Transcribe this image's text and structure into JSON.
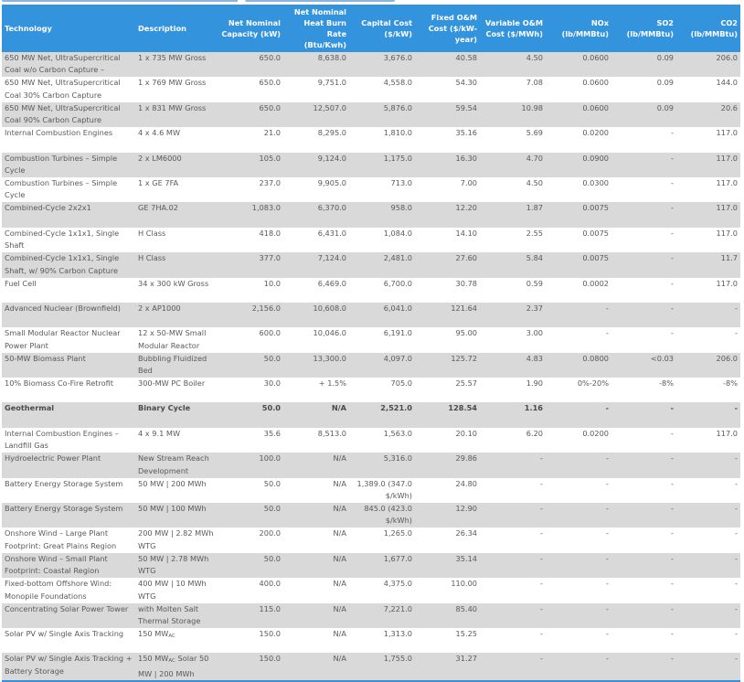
{
  "header": {
    "technology": "Technology",
    "description": "Description",
    "capacity": "Net Nominal Capacity (kW)",
    "heat_rate": "Net Nominal Heat Burn Rate (Btu/Kwh)",
    "capital_cost": "Capital Cost ($/kW)",
    "fixed_om": "Fixed O&M Cost ($/kW-year)",
    "variable_om": "Variable O&M Cost ($/MWh)",
    "nox": "NOx (lb/MMBtu)",
    "so2": "SO2 (lb/MMBtu)",
    "co2": "CO2 (lb/MMBtu)"
  },
  "colors": {
    "header_bg": "#3393dd",
    "stripe": "#d9d9d9",
    "text": "#5a5a5a"
  },
  "rows": [
    {
      "tech": "650 MW Net, UltraSupercritical Coal w/o Carbon Capture –",
      "desc": "1 x 735 MW Gross",
      "cap": "650.0",
      "heat": "8,638.0",
      "capital": "3,676.0",
      "fixed": "40.58",
      "var": "4.50",
      "nox": "0.0600",
      "so2": "0.09",
      "co2": "206.0"
    },
    {
      "tech": "650 MW Net, UltraSupercritical Coal 30% Carbon Capture",
      "desc": "1 x 769 MW Gross",
      "cap": "650.0",
      "heat": "9,751.0",
      "capital": "4,558.0",
      "fixed": "54.30",
      "var": "7.08",
      "nox": "0.0600",
      "so2": "0.09",
      "co2": "144.0"
    },
    {
      "tech": "650 MW Net, UltraSupercritical Coal 90% Carbon Capture",
      "desc": "1 x 831 MW Gross",
      "cap": "650.0",
      "heat": "12,507.0",
      "capital": "5,876.0",
      "fixed": "59.54",
      "var": "10.98",
      "nox": "0.0600",
      "so2": "0.09",
      "co2": "20.6"
    },
    {
      "tech": "Internal Combustion Engines",
      "desc": "4 x 4.6 MW",
      "cap": "21.0",
      "heat": "8,295.0",
      "capital": "1,810.0",
      "fixed": "35.16",
      "var": "5.69",
      "nox": "0.0200",
      "so2": "-",
      "co2": "117.0"
    },
    {
      "tech": "Combustion Turbines – Simple Cycle",
      "desc": "2 x LM6000",
      "cap": "105.0",
      "heat": "9,124.0",
      "capital": "1,175.0",
      "fixed": "16.30",
      "var": "4.70",
      "nox": "0.0900",
      "so2": "-",
      "co2": "117.0"
    },
    {
      "tech": "Combustion Turbines – Simple Cycle",
      "desc": "1 x GE 7FA",
      "cap": "237.0",
      "heat": "9,905.0",
      "capital": "713.0",
      "fixed": "7.00",
      "var": "4.50",
      "nox": "0.0300",
      "so2": "-",
      "co2": "117.0"
    },
    {
      "tech": "Combined-Cycle 2x2x1",
      "desc": "GE 7HA.02",
      "cap": "1,083.0",
      "heat": "6,370.0",
      "capital": "958.0",
      "fixed": "12.20",
      "var": "1.87",
      "nox": "0.0075",
      "so2": "-",
      "co2": "117.0"
    },
    {
      "tech": "Combined-Cycle 1x1x1, Single Shaft",
      "desc": "H Class",
      "cap": "418.0",
      "heat": "6,431.0",
      "capital": "1,084.0",
      "fixed": "14.10",
      "var": "2.55",
      "nox": "0.0075",
      "so2": "-",
      "co2": "117.0"
    },
    {
      "tech": "Combined-Cycle 1x1x1, Single Shaft, w/ 90% Carbon Capture",
      "desc": "H Class",
      "cap": "377.0",
      "heat": "7,124.0",
      "capital": "2,481.0",
      "fixed": "27.60",
      "var": "5.84",
      "nox": "0.0075",
      "so2": "-",
      "co2": "11.7"
    },
    {
      "tech": "Fuel Cell",
      "desc": "34 x 300 kW Gross",
      "cap": "10.0",
      "heat": "6,469.0",
      "capital": "6,700.0",
      "fixed": "30.78",
      "var": "0.59",
      "nox": "0.0002",
      "so2": "-",
      "co2": "117.0"
    },
    {
      "tech": "Advanced Nuclear (Brownfield)",
      "desc": "2 x AP1000",
      "cap": "2,156.0",
      "heat": "10,608.0",
      "capital": "6,041.0",
      "fixed": "121.64",
      "var": "2.37",
      "nox": "-",
      "so2": "-",
      "co2": "-"
    },
    {
      "tech": "Small Modular Reactor Nuclear Power Plant",
      "desc": "12 x 50-MW Small Modular Reactor",
      "cap": "600.0",
      "heat": "10,046.0",
      "capital": "6,191.0",
      "fixed": "95.00",
      "var": "3.00",
      "nox": "-",
      "so2": "-",
      "co2": "-"
    },
    {
      "tech": "50-MW Biomass Plant",
      "desc": "Bubbling Fluidized Bed",
      "cap": "50.0",
      "heat": "13,300.0",
      "capital": "4,097.0",
      "fixed": "125.72",
      "var": "4.83",
      "nox": "0.0800",
      "so2": "<0.03",
      "co2": "206.0"
    },
    {
      "tech": "10% Biomass Co-Fire Retrofit",
      "desc": "300-MW PC Boiler",
      "cap": "30.0",
      "heat": "+ 1.5%",
      "capital": "705.0",
      "fixed": "25.57",
      "var": "1.90",
      "nox": "0%-20%",
      "so2": "-8%",
      "co2": "-8%"
    },
    {
      "tech": "Geothermal",
      "desc": "Binary Cycle",
      "cap": "50.0",
      "heat": "N/A",
      "capital": "2,521.0",
      "fixed": "128.54",
      "var": "1.16",
      "nox": "-",
      "so2": "-",
      "co2": "-",
      "bold": true
    },
    {
      "tech": "Internal Combustion Engines – Landfill Gas",
      "desc": "4 x 9.1 MW",
      "cap": "35.6",
      "heat": "8,513.0",
      "capital": "1,563.0",
      "fixed": "20.10",
      "var": "6.20",
      "nox": "0.0200",
      "so2": "-",
      "co2": "117.0"
    },
    {
      "tech": "Hydroelectric Power Plant",
      "desc": "New Stream Reach Development",
      "cap": "100.0",
      "heat": "N/A",
      "capital": "5,316.0",
      "fixed": "29.86",
      "var": "-",
      "nox": "-",
      "so2": "-",
      "co2": "-"
    },
    {
      "tech": "Battery Energy Storage System",
      "desc": "50 MW | 200 MWh",
      "cap": "50.0",
      "heat": "N/A",
      "capital": "1,389.0 (347.0 $/kWh)",
      "fixed": "24.80",
      "var": "-",
      "nox": "-",
      "so2": "-",
      "co2": "-"
    },
    {
      "tech": "Battery Energy Storage System",
      "desc": "50 MW | 100 MWh",
      "cap": "50.0",
      "heat": "N/A",
      "capital": "845.0 (423.0 $/kWh)",
      "fixed": "12.90",
      "var": "-",
      "nox": "-",
      "so2": "-",
      "co2": "-"
    },
    {
      "tech": "Onshore Wind – Large Plant Footprint: Great Plains Region",
      "desc": "200 MW | 2.82 MWh WTG",
      "cap": "200.0",
      "heat": "N/A",
      "capital": "1,265.0",
      "fixed": "26.34",
      "var": "-",
      "nox": "-",
      "so2": "-",
      "co2": "-"
    },
    {
      "tech": "Onshore Wind – Small Plant Footprint: Coastal Region",
      "desc": "50 MW | 2.78 MWh WTG",
      "cap": "50.0",
      "heat": "N/A",
      "capital": "1,677.0",
      "fixed": "35.14",
      "var": "-",
      "nox": "-",
      "so2": "-",
      "co2": "-"
    },
    {
      "tech": "Fixed-bottom Offshore Wind: Monopile Foundations",
      "desc": "400 MW | 10 MWh WTG",
      "cap": "400.0",
      "heat": "N/A",
      "capital": "4,375.0",
      "fixed": "110.00",
      "var": "-",
      "nox": "-",
      "so2": "-",
      "co2": "-"
    },
    {
      "tech": "Concentrating Solar Power Tower",
      "desc": "with Molten Salt Thermal Storage",
      "cap": "115.0",
      "heat": "N/A",
      "capital": "7,221.0",
      "fixed": "85.40",
      "var": "-",
      "nox": "-",
      "so2": "-",
      "co2": "-"
    },
    {
      "tech": "Solar PV w/ Single Axis Tracking",
      "desc": "150 MW",
      "desc_sub": "AC",
      "cap": "150.0",
      "heat": "N/A",
      "capital": "1,313.0",
      "fixed": "15.25",
      "var": "-",
      "nox": "-",
      "so2": "-",
      "co2": "-"
    },
    {
      "tech": "Solar PV w/ Single Axis Tracking + Battery Storage",
      "desc": "150 MW",
      "desc_sub": "AC",
      "desc_after": " Solar 50 MW | 200 MWh",
      "cap": "150.0",
      "heat": "N/A",
      "capital": "1,755.0",
      "fixed": "31.27",
      "var": "-",
      "nox": "-",
      "so2": "-",
      "co2": "-"
    }
  ]
}
